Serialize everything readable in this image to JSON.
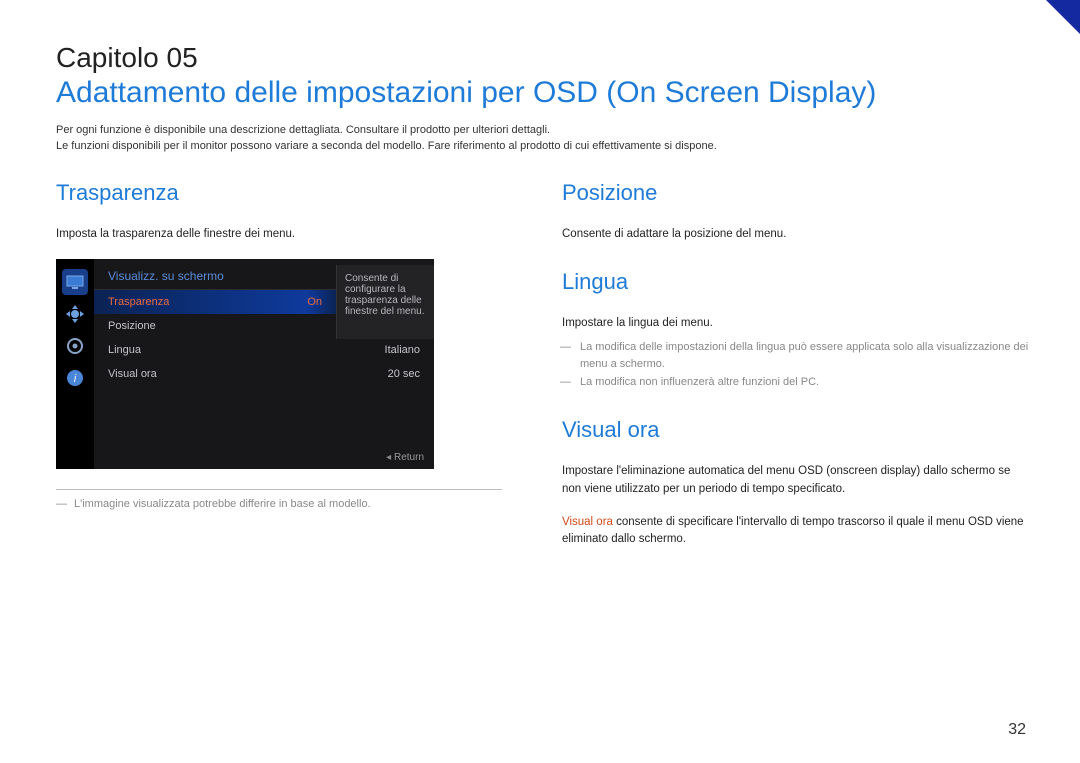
{
  "chapter": "Capitolo 05",
  "title": "Adattamento delle impostazioni per OSD (On Screen Display)",
  "intro1": "Per ogni funzione è disponibile una descrizione dettagliata. Consultare il prodotto per ulteriori dettagli.",
  "intro2": "Le funzioni disponibili per il monitor possono variare a seconda del modello. Fare riferimento al prodotto di cui effettivamente si dispone.",
  "left": {
    "heading": "Trasparenza",
    "desc": "Imposta la trasparenza delle finestre dei menu.",
    "footnote": "L'immagine visualizzata potrebbe differire in base al modello."
  },
  "osd": {
    "header": "Visualizz. su schermo",
    "rows": [
      {
        "label": "Trasparenza",
        "value": "On",
        "highlight": true
      },
      {
        "label": "Posizione",
        "value": "▸",
        "highlight": false
      },
      {
        "label": "Lingua",
        "value": "Italiano",
        "highlight": false
      },
      {
        "label": "Visual ora",
        "value": "20 sec",
        "highlight": false
      }
    ],
    "tip": "Consente di configurare la trasparenza delle finestre del menu.",
    "return": "Return"
  },
  "right": {
    "posizione": {
      "heading": "Posizione",
      "desc": "Consente di adattare la posizione del menu."
    },
    "lingua": {
      "heading": "Lingua",
      "desc": "Impostare la lingua dei menu.",
      "notes": [
        "La modifica delle impostazioni della lingua può essere applicata solo alla visualizzazione dei menu a schermo.",
        "La modifica non influenzerà altre funzioni del PC."
      ]
    },
    "visualora": {
      "heading": "Visual ora",
      "desc": "Impostare l'eliminazione automatica del menu OSD (onscreen display) dallo schermo se non viene utilizzato per un periodo di tempo specificato.",
      "label": "Visual ora",
      "text2": " consente di specificare l'intervallo di tempo trascorso il quale il menu OSD viene eliminato dallo schermo."
    }
  },
  "page": "32"
}
